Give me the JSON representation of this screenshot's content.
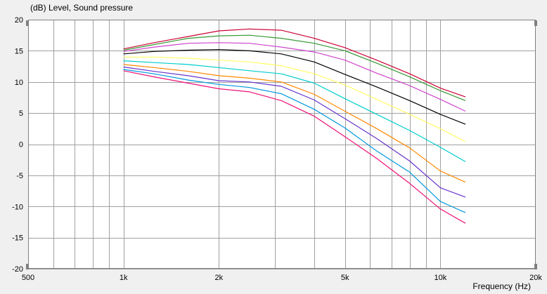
{
  "chart_data": {
    "type": "line",
    "ylabel": "(dB)  Level, Sound pressure",
    "xlabel": "Frequency  (Hz)",
    "x_scale": "log",
    "xlim": [
      500,
      20000
    ],
    "ylim": [
      -20,
      20
    ],
    "grid": true,
    "x_major_ticks": [
      {
        "value": 500,
        "label": "500"
      },
      {
        "value": 1000,
        "label": "1k"
      },
      {
        "value": 2000,
        "label": "2k"
      },
      {
        "value": 5000,
        "label": "5k"
      },
      {
        "value": 10000,
        "label": "10k"
      },
      {
        "value": 20000,
        "label": "20k"
      }
    ],
    "x_gridlines": [
      600,
      700,
      800,
      900,
      1000,
      2000,
      3000,
      4000,
      5000,
      6000,
      7000,
      8000,
      9000,
      10000
    ],
    "y_ticks": [
      20,
      15,
      10,
      5,
      0,
      -5,
      -10,
      -15,
      -20
    ],
    "x": [
      1000,
      1250,
      1600,
      2000,
      2500,
      3150,
      4000,
      5000,
      6300,
      8000,
      10000,
      12000
    ],
    "series": [
      {
        "color": "#cc0033",
        "values": [
          15.3,
          16.3,
          17.3,
          18.2,
          18.5,
          18.3,
          17.0,
          15.5,
          13.5,
          11.3,
          9.0,
          7.6
        ]
      },
      {
        "color": "#339933",
        "values": [
          15.1,
          16.0,
          17.0,
          17.4,
          17.5,
          17.0,
          16.2,
          15.0,
          13.0,
          10.8,
          8.6,
          7.0
        ]
      },
      {
        "color": "#cc44cc",
        "values": [
          14.9,
          15.6,
          16.2,
          16.3,
          16.2,
          15.6,
          14.8,
          13.5,
          11.4,
          9.4,
          7.2,
          5.3
        ]
      },
      {
        "color": "#000000",
        "values": [
          14.5,
          14.9,
          15.1,
          15.2,
          15.0,
          14.5,
          13.2,
          11.2,
          9.2,
          7.0,
          4.8,
          3.2
        ]
      },
      {
        "color": "#ffff66",
        "values": [
          14.0,
          14.0,
          13.8,
          13.5,
          13.2,
          12.6,
          11.3,
          9.5,
          7.2,
          4.8,
          2.5,
          0.4
        ]
      },
      {
        "color": "#00cccc",
        "values": [
          13.4,
          13.1,
          12.8,
          12.3,
          11.8,
          11.3,
          9.8,
          7.3,
          4.8,
          2.2,
          -0.5,
          -2.8
        ]
      },
      {
        "color": "#ff8800",
        "values": [
          12.8,
          12.3,
          11.7,
          11.0,
          10.6,
          10.0,
          8.0,
          5.3,
          2.5,
          -0.6,
          -4.3,
          -6.1
        ]
      },
      {
        "color": "#6633cc",
        "values": [
          12.4,
          11.7,
          11.0,
          10.2,
          10.0,
          9.3,
          7.1,
          4.1,
          0.9,
          -2.7,
          -7.0,
          -8.5
        ]
      },
      {
        "color": "#0099dd",
        "values": [
          12.0,
          11.3,
          10.3,
          9.6,
          9.1,
          8.1,
          5.6,
          2.6,
          -1.1,
          -4.5,
          -9.2,
          -11.0
        ]
      },
      {
        "color": "#ee1177",
        "values": [
          11.8,
          10.8,
          9.8,
          8.9,
          8.4,
          7.0,
          4.5,
          1.2,
          -2.3,
          -6.3,
          -10.4,
          -12.7
        ]
      }
    ]
  }
}
